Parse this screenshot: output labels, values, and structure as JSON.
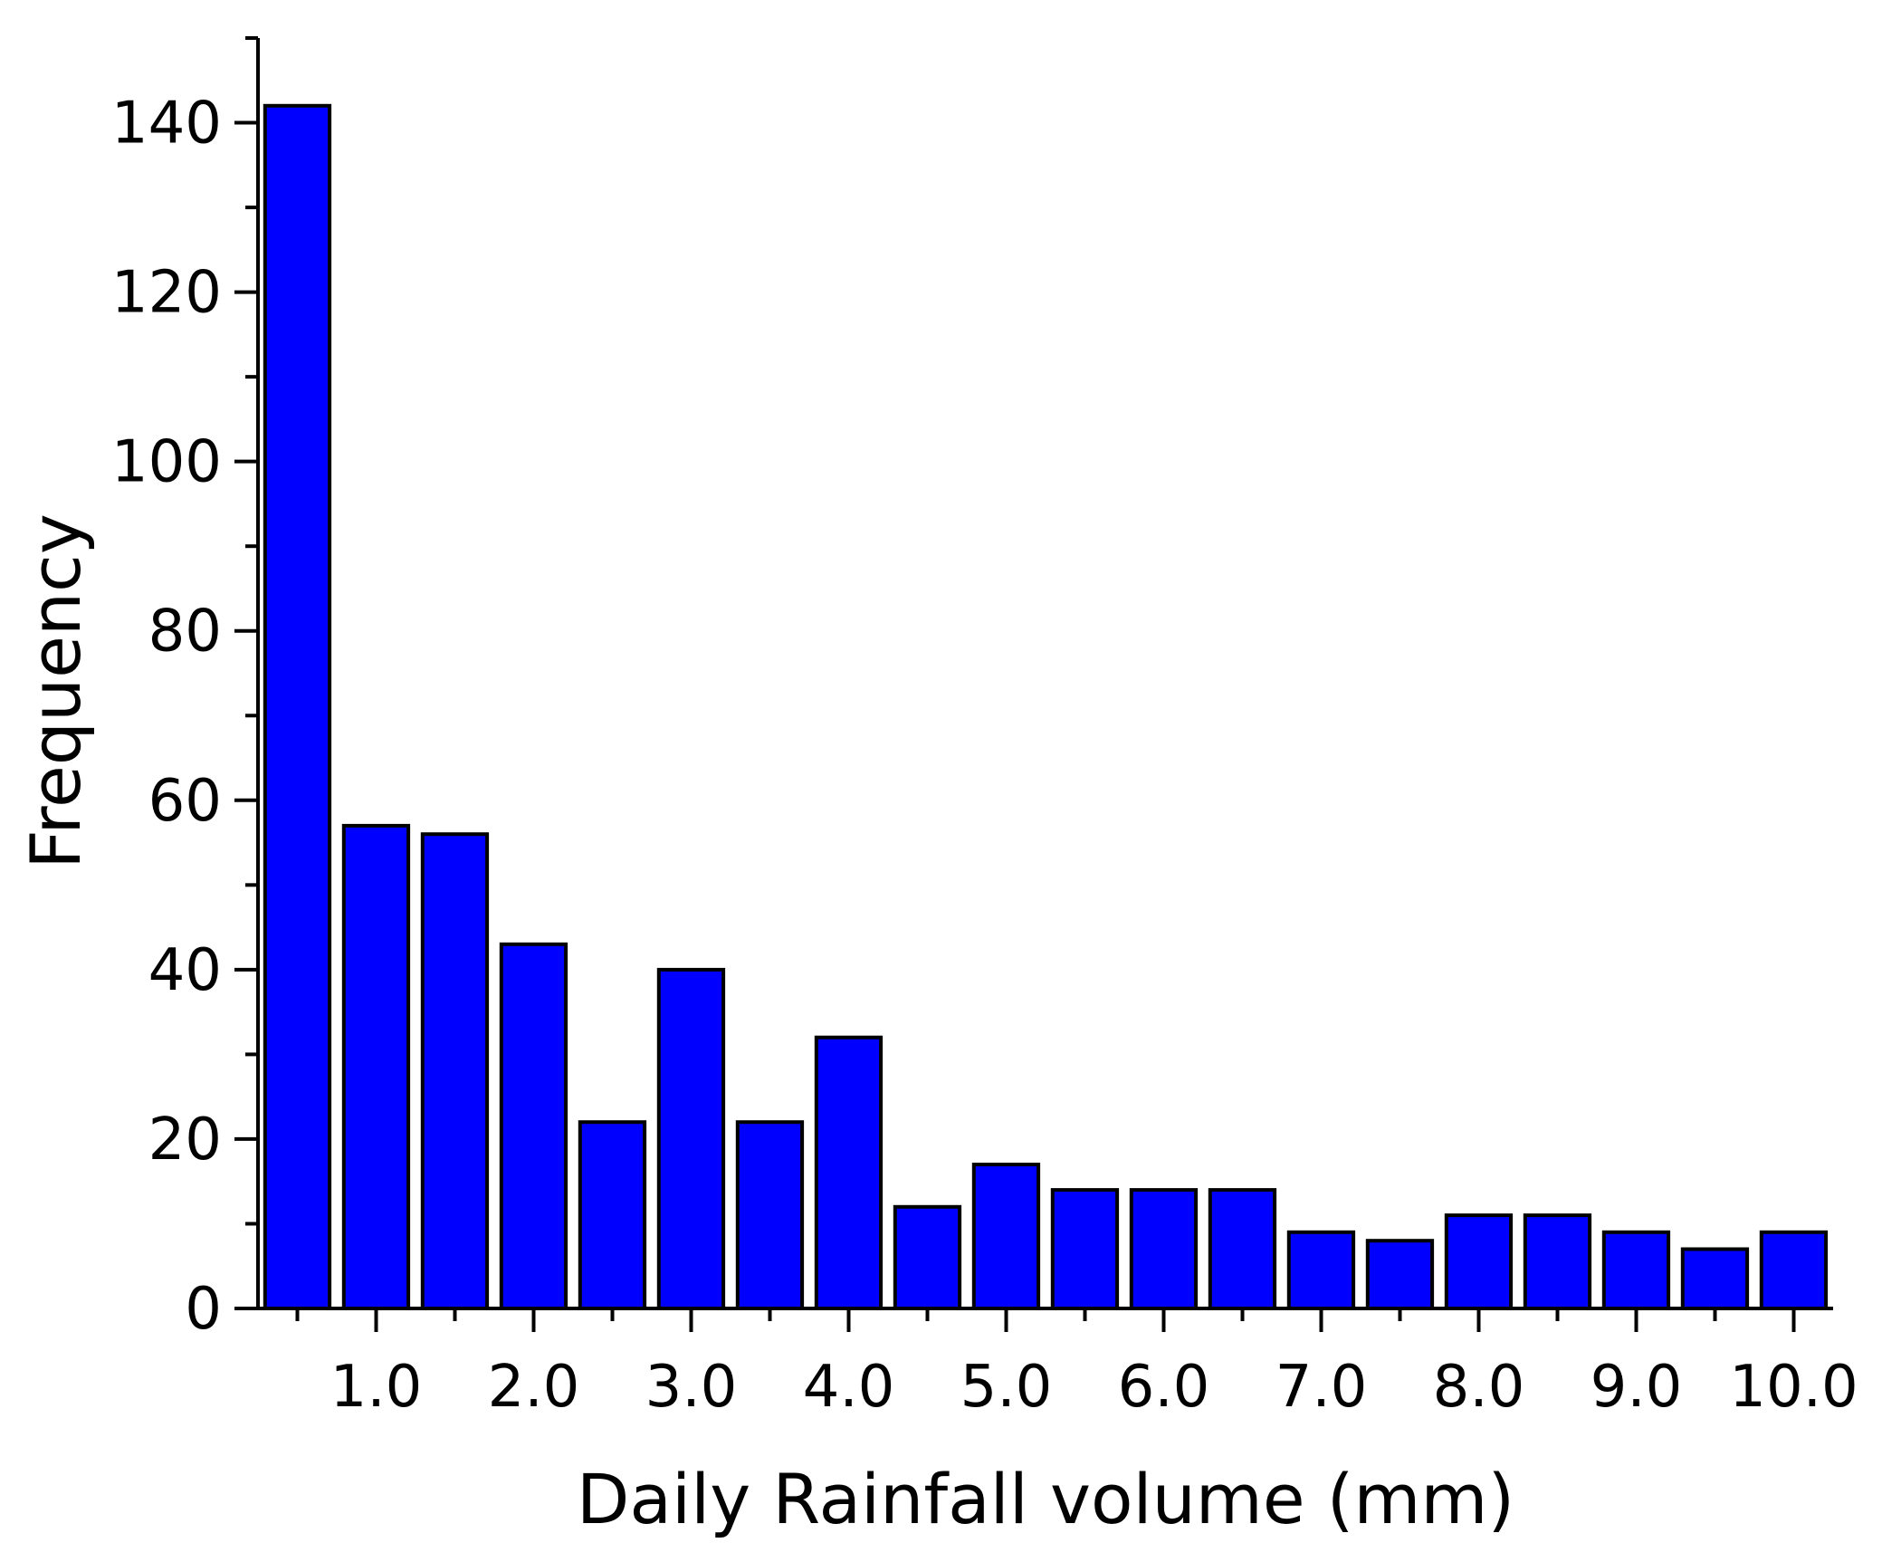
{
  "chart_data": {
    "type": "bar",
    "xlabel": "Daily Rainfall volume (mm)",
    "ylabel": "Frequency",
    "x_tick_labels": [
      "1.0",
      "2.0",
      "3.0",
      "4.0",
      "5.0",
      "6.0",
      "7.0",
      "8.0",
      "9.0",
      "10.0"
    ],
    "y_tick_labels": [
      "0",
      "20",
      "40",
      "60",
      "80",
      "100",
      "120",
      "140"
    ],
    "x_tick_values": [
      1,
      2,
      3,
      4,
      5,
      6,
      7,
      8,
      9,
      10
    ],
    "y_tick_values": [
      0,
      20,
      40,
      60,
      80,
      100,
      120,
      140
    ],
    "bin_width": 0.5,
    "bin_centers": [
      0.5,
      1.0,
      1.5,
      2.0,
      2.5,
      3.0,
      3.5,
      4.0,
      4.5,
      5.0,
      5.5,
      6.0,
      6.5,
      7.0,
      7.5,
      8.0,
      8.5,
      9.0,
      9.5,
      10.0
    ],
    "values": [
      142,
      57,
      56,
      43,
      22,
      40,
      22,
      32,
      12,
      17,
      14,
      14,
      14,
      9,
      8,
      11,
      11,
      9,
      7,
      9
    ],
    "xlim": [
      0.25,
      10.25
    ],
    "ylim": [
      0,
      150
    ],
    "grid": false,
    "bar_color": "#0000ff",
    "bar_edge_color": "#000000"
  }
}
